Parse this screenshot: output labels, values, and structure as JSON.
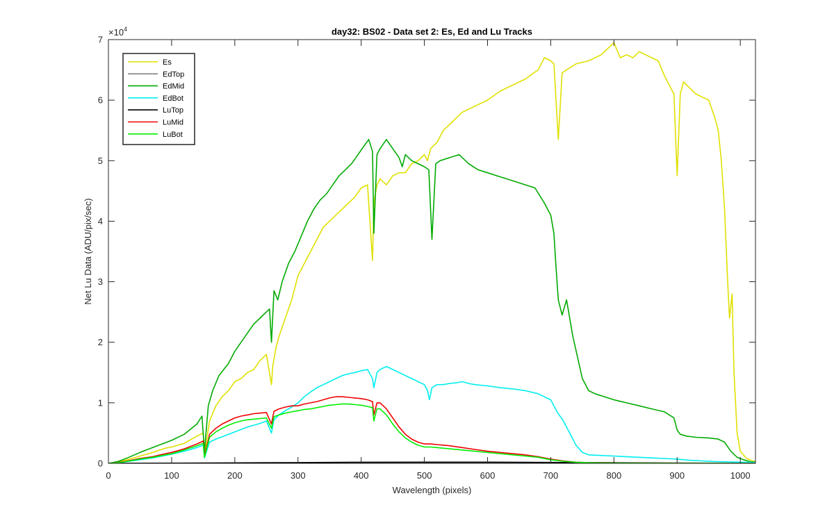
{
  "chart_data": {
    "type": "line",
    "title": "day32: BS02 - Data set 2: Es, Ed and Lu Tracks",
    "xlabel": "Wavelength (pixels)",
    "ylabel": "Net Lu Data (ADU/pix/sec)",
    "xlim": [
      0,
      1024
    ],
    "ylim": [
      0,
      70000
    ],
    "y_exponent_label": "×10",
    "y_exponent_power": "4",
    "xticks": [
      0,
      100,
      200,
      300,
      400,
      500,
      600,
      700,
      800,
      900,
      1000
    ],
    "xtick_labels": [
      "0",
      "100",
      "200",
      "300",
      "400",
      "500",
      "600",
      "700",
      "800",
      "900",
      "1000"
    ],
    "yticks": [
      0,
      10000,
      20000,
      30000,
      40000,
      50000,
      60000,
      70000
    ],
    "ytick_labels": [
      "0",
      "1",
      "2",
      "3",
      "4",
      "5",
      "6",
      "7"
    ],
    "grid": false,
    "legend_position": "top-left",
    "series": [
      {
        "name": "Es",
        "color": "#e0e000",
        "x": [
          0,
          15,
          30,
          50,
          70,
          90,
          100,
          120,
          140,
          150,
          152,
          160,
          170,
          180,
          190,
          200,
          210,
          220,
          230,
          240,
          250,
          258,
          260,
          265,
          270,
          280,
          290,
          300,
          310,
          320,
          330,
          340,
          350,
          360,
          370,
          380,
          390,
          400,
          410,
          418,
          420,
          425,
          430,
          440,
          450,
          460,
          470,
          480,
          490,
          500,
          505,
          510,
          520,
          530,
          540,
          550,
          560,
          570,
          580,
          590,
          600,
          620,
          640,
          660,
          680,
          690,
          700,
          705,
          712,
          718,
          725,
          740,
          760,
          780,
          800,
          810,
          820,
          830,
          840,
          850,
          860,
          870,
          880,
          890,
          895,
          900,
          905,
          910,
          920,
          930,
          940,
          950,
          960,
          965,
          970,
          975,
          980,
          983,
          987,
          990,
          995,
          1000,
          1010,
          1020,
          1024
        ],
        "y": [
          0,
          200,
          600,
          1200,
          1800,
          2500,
          2700,
          3300,
          4500,
          5000,
          1500,
          7000,
          9500,
          11000,
          12000,
          13500,
          14000,
          15000,
          15500,
          17000,
          18000,
          13000,
          16000,
          19000,
          21000,
          24000,
          27000,
          31000,
          33000,
          35000,
          37000,
          39000,
          40000,
          41000,
          42000,
          43000,
          44000,
          45500,
          46000,
          33500,
          43000,
          46000,
          47000,
          46000,
          47500,
          48000,
          48000,
          49500,
          50000,
          51000,
          50000,
          52000,
          53000,
          55000,
          56000,
          57000,
          58000,
          58500,
          59000,
          59500,
          60000,
          61500,
          62500,
          63500,
          65000,
          67000,
          66500,
          66000,
          53500,
          64500,
          65000,
          66000,
          66500,
          67500,
          69500,
          67000,
          67500,
          67000,
          68000,
          67500,
          67000,
          66500,
          64000,
          62000,
          61000,
          47500,
          61000,
          63000,
          62000,
          61000,
          60500,
          60000,
          57000,
          55000,
          50000,
          42000,
          30000,
          24000,
          28000,
          15000,
          5000,
          2000,
          800,
          400,
          300
        ]
      },
      {
        "name": "EdTop",
        "color": "#808080",
        "x": [
          0,
          50,
          100,
          200,
          300,
          400,
          500,
          600,
          700,
          800,
          900,
          1000,
          1024
        ],
        "y": [
          0,
          10,
          20,
          40,
          80,
          100,
          110,
          100,
          70,
          40,
          20,
          5,
          0
        ]
      },
      {
        "name": "EdMid",
        "color": "#00aa00",
        "x": [
          0,
          15,
          30,
          50,
          70,
          90,
          100,
          120,
          140,
          148,
          152,
          158,
          165,
          175,
          190,
          200,
          210,
          220,
          230,
          245,
          255,
          258,
          262,
          268,
          275,
          285,
          295,
          305,
          315,
          325,
          335,
          345,
          355,
          365,
          375,
          385,
          395,
          405,
          412,
          418,
          420,
          425,
          430,
          440,
          450,
          460,
          465,
          470,
          480,
          490,
          500,
          507,
          512,
          518,
          525,
          540,
          555,
          570,
          585,
          600,
          615,
          630,
          645,
          660,
          675,
          690,
          700,
          705,
          708,
          712,
          718,
          725,
          735,
          750,
          760,
          770,
          785,
          800,
          820,
          840,
          860,
          880,
          895,
          900,
          905,
          915,
          930,
          950,
          965,
          975,
          985,
          995,
          1005,
          1015,
          1024
        ],
        "y": [
          0,
          300,
          900,
          1800,
          2600,
          3400,
          3800,
          4800,
          6500,
          7800,
          2000,
          9500,
          12000,
          14500,
          16500,
          18500,
          20000,
          21500,
          23000,
          24500,
          25500,
          20000,
          28500,
          27000,
          30000,
          33000,
          35000,
          37500,
          40000,
          42000,
          43500,
          44500,
          46000,
          47500,
          48500,
          49500,
          51000,
          52500,
          53500,
          51500,
          38000,
          51000,
          52000,
          53500,
          52000,
          50500,
          49000,
          51000,
          50000,
          49500,
          49000,
          48500,
          37000,
          49500,
          50000,
          50500,
          51000,
          49500,
          48500,
          48000,
          47500,
          47000,
          46500,
          46000,
          45500,
          43000,
          41000,
          38000,
          33000,
          27000,
          24500,
          27000,
          21000,
          14000,
          12000,
          11500,
          11000,
          10500,
          10000,
          9500,
          9000,
          8500,
          7500,
          5500,
          4800,
          4500,
          4300,
          4200,
          4000,
          3500,
          2000,
          1000,
          600,
          300,
          200
        ]
      },
      {
        "name": "EdBot",
        "color": "#00eeee",
        "x": [
          0,
          15,
          30,
          50,
          70,
          90,
          100,
          120,
          140,
          150,
          152,
          160,
          170,
          180,
          190,
          200,
          210,
          220,
          230,
          240,
          250,
          258,
          262,
          270,
          280,
          290,
          300,
          310,
          320,
          330,
          340,
          350,
          360,
          370,
          380,
          390,
          400,
          410,
          418,
          420,
          425,
          430,
          440,
          450,
          460,
          470,
          480,
          490,
          500,
          505,
          508,
          512,
          520,
          530,
          540,
          550,
          560,
          570,
          580,
          600,
          620,
          640,
          660,
          680,
          700,
          710,
          720,
          730,
          740,
          750,
          760,
          780,
          800,
          820,
          840,
          860,
          880,
          900,
          920,
          940,
          960,
          980,
          1000,
          1024
        ],
        "y": [
          0,
          100,
          300,
          600,
          900,
          1300,
          1500,
          2000,
          2600,
          3000,
          900,
          3500,
          4000,
          4400,
          4800,
          5200,
          5600,
          6000,
          6300,
          6600,
          7000,
          5000,
          7200,
          8000,
          8700,
          9300,
          10000,
          11000,
          11800,
          12500,
          13000,
          13500,
          14000,
          14500,
          14800,
          15000,
          15300,
          15500,
          14000,
          12500,
          15000,
          15500,
          16000,
          15500,
          15000,
          14500,
          14000,
          13500,
          13000,
          12000,
          10500,
          12500,
          13000,
          13000,
          13200,
          13300,
          13500,
          13200,
          13000,
          12800,
          12500,
          12300,
          12000,
          11500,
          10500,
          8500,
          7000,
          5000,
          3000,
          1800,
          1400,
          1300,
          1200,
          1100,
          1000,
          900,
          800,
          700,
          500,
          400,
          300,
          250,
          200,
          150
        ]
      },
      {
        "name": "LuTop",
        "color": "#000000",
        "x": [
          0,
          50,
          100,
          200,
          300,
          400,
          500,
          600,
          700,
          800,
          900,
          1000,
          1024
        ],
        "y": [
          0,
          20,
          40,
          80,
          130,
          180,
          200,
          190,
          150,
          100,
          60,
          20,
          10
        ]
      },
      {
        "name": "LuMid",
        "color": "#ee0000",
        "x": [
          0,
          15,
          30,
          50,
          70,
          90,
          100,
          120,
          140,
          150,
          152,
          160,
          170,
          180,
          190,
          200,
          210,
          220,
          230,
          240,
          250,
          258,
          262,
          270,
          280,
          290,
          300,
          310,
          320,
          330,
          340,
          350,
          360,
          370,
          380,
          390,
          400,
          410,
          418,
          420,
          425,
          430,
          440,
          450,
          460,
          470,
          480,
          490,
          500,
          510,
          520,
          540,
          560,
          580,
          600,
          620,
          640,
          660,
          680,
          700,
          720,
          740,
          760,
          780,
          800,
          850,
          900,
          950,
          1000,
          1024
        ],
        "y": [
          0,
          150,
          400,
          800,
          1100,
          1600,
          1800,
          2400,
          3200,
          3700,
          1200,
          4800,
          5800,
          6500,
          7000,
          7500,
          7800,
          8000,
          8200,
          8300,
          8400,
          6500,
          8600,
          9000,
          9300,
          9500,
          9500,
          9800,
          10000,
          10200,
          10500,
          10800,
          11000,
          11000,
          10900,
          10800,
          10700,
          10500,
          10200,
          8000,
          10000,
          10000,
          9000,
          7500,
          6000,
          4800,
          4000,
          3500,
          3200,
          3200,
          3100,
          2900,
          2600,
          2300,
          2000,
          1800,
          1600,
          1400,
          1100,
          700,
          400,
          200,
          120,
          80,
          50,
          30,
          20,
          10,
          5,
          0
        ]
      },
      {
        "name": "LuBot",
        "color": "#00ee00",
        "x": [
          0,
          15,
          30,
          50,
          70,
          90,
          100,
          120,
          140,
          150,
          152,
          160,
          170,
          180,
          190,
          200,
          210,
          220,
          230,
          240,
          250,
          258,
          262,
          270,
          280,
          290,
          300,
          310,
          320,
          330,
          340,
          350,
          360,
          370,
          380,
          390,
          400,
          410,
          418,
          420,
          425,
          430,
          440,
          450,
          460,
          470,
          480,
          490,
          500,
          510,
          520,
          540,
          560,
          580,
          600,
          620,
          640,
          660,
          680,
          700,
          720,
          740,
          760,
          780,
          800,
          850,
          900,
          950,
          1000,
          1024
        ],
        "y": [
          0,
          120,
          350,
          700,
          1000,
          1400,
          1600,
          2200,
          2900,
          3300,
          1000,
          4300,
          5200,
          5800,
          6300,
          6700,
          7000,
          7200,
          7300,
          7400,
          7500,
          5800,
          7700,
          8000,
          8300,
          8500,
          8700,
          8900,
          9000,
          9200,
          9400,
          9600,
          9700,
          9800,
          9800,
          9700,
          9600,
          9400,
          9200,
          7000,
          9000,
          9000,
          8000,
          6500,
          5200,
          4200,
          3500,
          3000,
          2700,
          2700,
          2600,
          2400,
          2200,
          2000,
          1800,
          1600,
          1400,
          1200,
          1000,
          600,
          350,
          180,
          100,
          60,
          40,
          25,
          15,
          8,
          4,
          0
        ]
      }
    ]
  }
}
